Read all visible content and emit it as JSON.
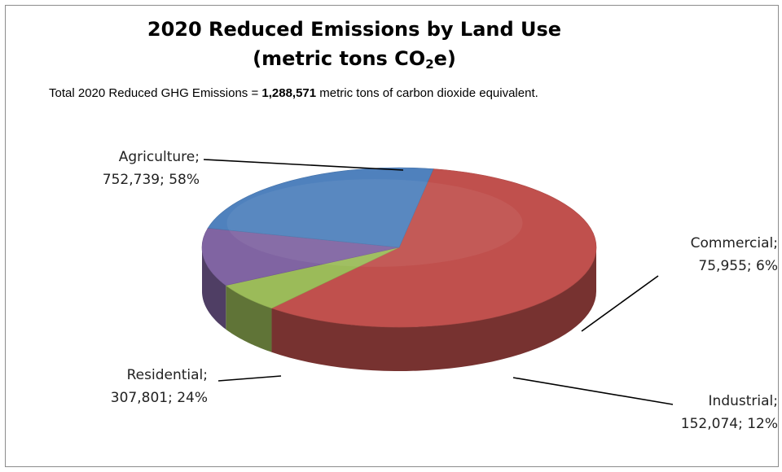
{
  "chart_data": {
    "type": "pie",
    "title": {
      "line1": "2020 Reduced Emissions by Land Use",
      "line2_prefix": "(metric tons CO",
      "line2_sub": "2",
      "line2_suffix": "e)"
    },
    "subtitle": {
      "prefix": "Total 2020 Reduced GHG Emissions = ",
      "bold_value": "1,288,571",
      "suffix": " metric tons of carbon dioxide equivalent."
    },
    "slices": [
      {
        "name": "Agriculture",
        "value": 752739,
        "percent": 58,
        "label_line1": "Agriculture;",
        "label_line2": "752,739; 58%",
        "color": "#c0504d"
      },
      {
        "name": "Commercial",
        "value": 75955,
        "percent": 6,
        "label_line1": "Commercial;",
        "label_line2": "75,955; 6%",
        "color": "#9bbb59"
      },
      {
        "name": "Industrial",
        "value": 152074,
        "percent": 12,
        "label_line1": "Industrial;",
        "label_line2": "152,074; 12%",
        "color": "#8064a2"
      },
      {
        "name": "Residential",
        "value": 307801,
        "percent": 24,
        "label_line1": "Residential;",
        "label_line2": "307,801; 24%",
        "color": "#4f81bd"
      }
    ],
    "style": "3d-pie",
    "legend": "none"
  }
}
